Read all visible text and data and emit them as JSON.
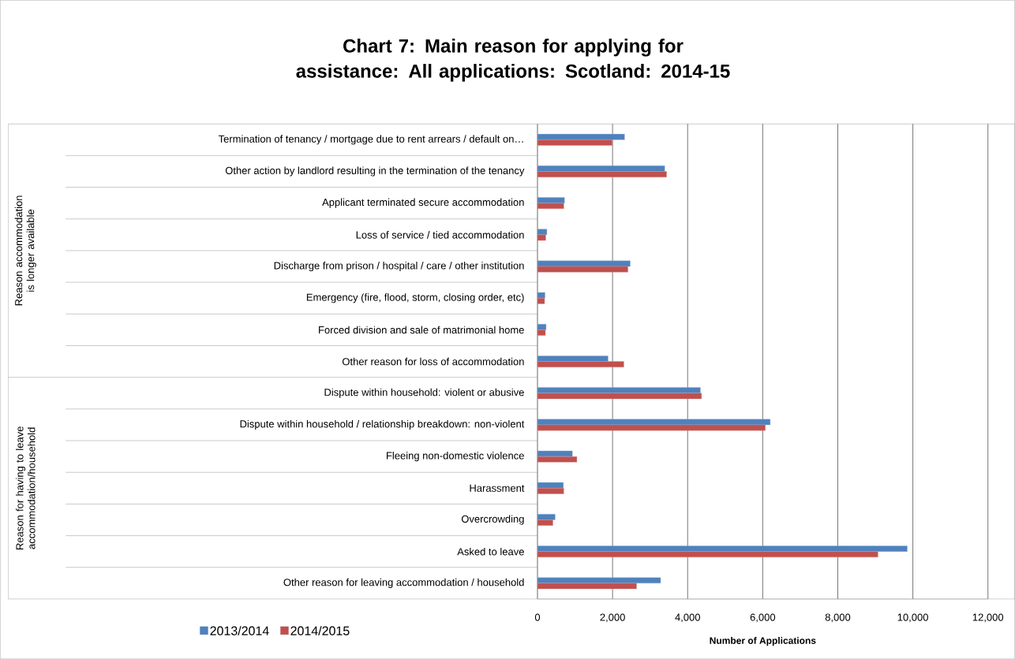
{
  "chart_data": {
    "type": "bar",
    "orientation": "horizontal",
    "title": "Chart 7:  Main reason for applying for assistance:   All applications: Scotland: 2014-15",
    "xlabel": "Number of Applications",
    "categories": [
      "Termination of tenancy / mortgage due to rent arrears / default on…",
      "Other action by landlord resulting in the termination of the tenancy",
      "Applicant terminated secure accommodation",
      "Loss of service / tied accommodation",
      "Discharge from prison / hospital / care / other institution",
      "Emergency (fire, flood, storm, closing order, etc)",
      "Forced division and sale of matrimonial home",
      "Other reason for loss of accommodation",
      "Dispute within household: violent or abusive",
      "Dispute within household / relationship breakdown: non-violent",
      "Fleeing non-domestic violence",
      "Harassment",
      "Overcrowding",
      "Asked to leave",
      "Other reason for leaving accommodation / household"
    ],
    "series": [
      {
        "name": "2013/2014",
        "color": "#4f81bd",
        "values": [
          2320,
          3390,
          720,
          250,
          2470,
          200,
          230,
          1880,
          4340,
          6200,
          930,
          690,
          470,
          9850,
          3280
        ]
      },
      {
        "name": "2014/2015",
        "color": "#c0504d",
        "values": [
          1990,
          3440,
          700,
          220,
          2410,
          190,
          210,
          2300,
          4370,
          6070,
          1050,
          700,
          410,
          9070,
          2640
        ]
      }
    ],
    "xlim": [
      0,
      12000
    ],
    "xticks": [
      0,
      {
        "value": 2000,
        "label": "2,000"
      },
      {
        "value": 4000,
        "label": "4,000"
      },
      {
        "value": 6000,
        "label": "6,000"
      },
      {
        "value": 8000,
        "label": "8,000"
      },
      {
        "value": 10000,
        "label": "10,000"
      },
      {
        "value": 12000,
        "label": "12,000"
      }
    ],
    "grid": "x",
    "legend": "bottom",
    "annotations": [
      "Reason accommodation is longer available",
      "Reason for having to leave accommodation/household"
    ]
  }
}
